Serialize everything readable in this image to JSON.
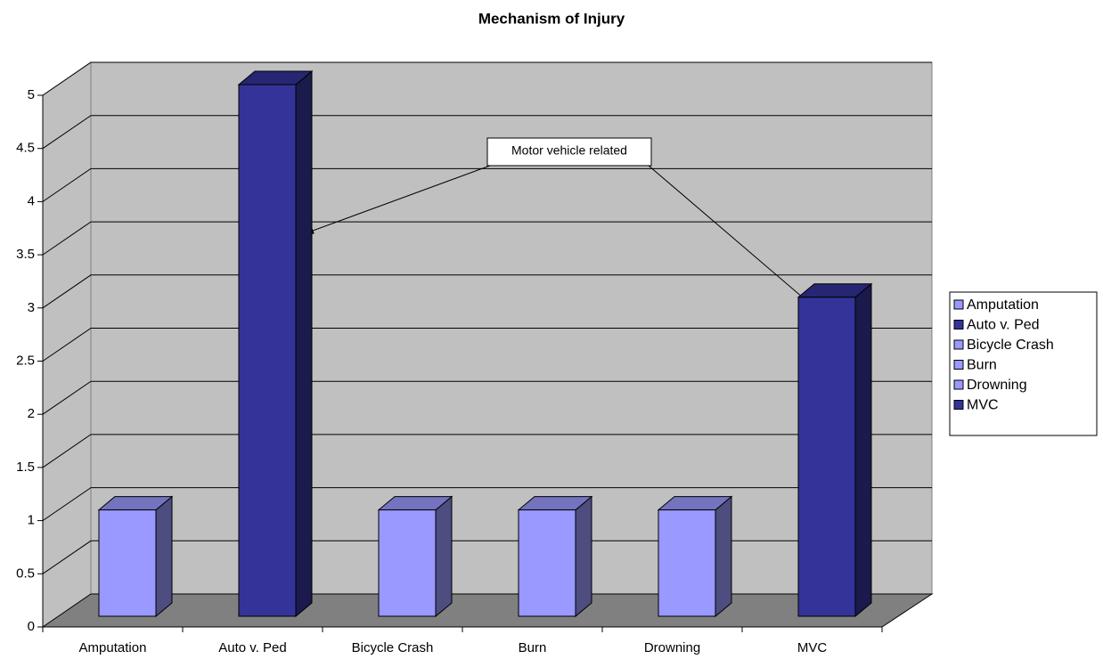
{
  "chart_data": {
    "type": "bar",
    "title": "Mechanism of Injury",
    "categories": [
      "Amputation",
      "Auto v. Ped",
      "Bicycle Crash",
      "Burn",
      "Drowning",
      "MVC"
    ],
    "values": [
      1,
      5,
      1,
      1,
      1,
      3
    ],
    "colors": [
      "#9999ff",
      "#333399",
      "#9999ff",
      "#9999ff",
      "#9999ff",
      "#333399"
    ],
    "ylim": [
      0,
      5
    ],
    "yticks": [
      0,
      0.5,
      1,
      1.5,
      2,
      2.5,
      3,
      3.5,
      4,
      4.5,
      5
    ],
    "grid": true,
    "legend": "right",
    "annotation": "Motor vehicle related"
  }
}
